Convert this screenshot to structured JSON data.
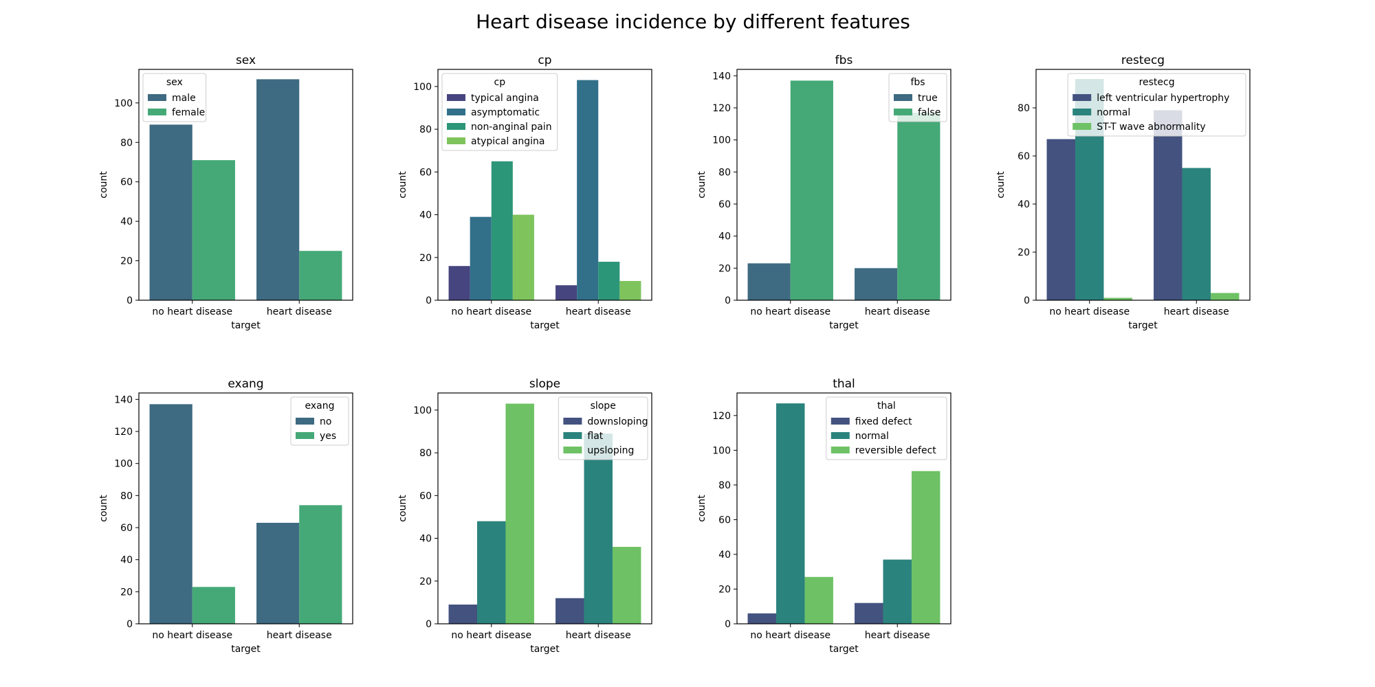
{
  "figure": {
    "title": "Heart disease incidence by different features"
  },
  "chart_data": [
    {
      "type": "bar",
      "title": "sex",
      "xlabel": "target",
      "ylabel": "count",
      "categories": [
        "no heart disease",
        "heart disease"
      ],
      "ylim": [
        0,
        117
      ],
      "yticks": [
        0,
        20,
        40,
        60,
        80,
        100
      ],
      "legend": {
        "title": "sex",
        "placement": "upper left"
      },
      "series": [
        {
          "name": "male",
          "color": "#3e6a82",
          "values": [
            89,
            112
          ]
        },
        {
          "name": "female",
          "color": "#45a977",
          "values": [
            71,
            25
          ]
        }
      ]
    },
    {
      "type": "bar",
      "title": "cp",
      "xlabel": "target",
      "ylabel": "count",
      "categories": [
        "no heart disease",
        "heart disease"
      ],
      "ylim": [
        0,
        108
      ],
      "yticks": [
        0,
        20,
        40,
        60,
        80,
        100
      ],
      "legend": {
        "title": "cp",
        "placement": "upper left"
      },
      "series": [
        {
          "name": "typical angina",
          "color": "#46457f",
          "values": [
            16,
            7
          ]
        },
        {
          "name": "asymptomatic",
          "color": "#32708a",
          "values": [
            39,
            103
          ]
        },
        {
          "name": "non-anginal pain",
          "color": "#2c9679",
          "values": [
            65,
            18
          ]
        },
        {
          "name": "atypical angina",
          "color": "#7fc35d",
          "values": [
            40,
            9
          ]
        }
      ]
    },
    {
      "type": "bar",
      "title": "fbs",
      "xlabel": "target",
      "ylabel": "count",
      "categories": [
        "no heart disease",
        "heart disease"
      ],
      "ylim": [
        0,
        144
      ],
      "yticks": [
        0,
        20,
        40,
        60,
        80,
        100,
        120,
        140
      ],
      "legend": {
        "title": "fbs",
        "placement": "upper right"
      },
      "series": [
        {
          "name": "true",
          "color": "#3e6a82",
          "values": [
            23,
            20
          ]
        },
        {
          "name": "false",
          "color": "#45a977",
          "values": [
            137,
            117
          ]
        }
      ]
    },
    {
      "type": "bar",
      "title": "restecg",
      "xlabel": "target",
      "ylabel": "count",
      "categories": [
        "no heart disease",
        "heart disease"
      ],
      "ylim": [
        0,
        96
      ],
      "yticks": [
        0,
        20,
        40,
        60,
        80
      ],
      "legend": {
        "title": "restecg",
        "placement": "upper right"
      },
      "series": [
        {
          "name": "left ventricular hypertrophy",
          "color": "#43527f",
          "values": [
            67,
            79
          ]
        },
        {
          "name": "normal",
          "color": "#2b837d",
          "values": [
            92,
            55
          ]
        },
        {
          "name": "ST-T wave abnormality",
          "color": "#6ec265",
          "values": [
            1,
            3
          ]
        }
      ]
    },
    {
      "type": "bar",
      "title": "exang",
      "xlabel": "target",
      "ylabel": "count",
      "categories": [
        "no heart disease",
        "heart disease"
      ],
      "ylim": [
        0,
        144
      ],
      "yticks": [
        0,
        20,
        40,
        60,
        80,
        100,
        120,
        140
      ],
      "legend": {
        "title": "exang",
        "placement": "upper right"
      },
      "series": [
        {
          "name": "no",
          "color": "#3e6a82",
          "values": [
            137,
            63
          ]
        },
        {
          "name": "yes",
          "color": "#45a977",
          "values": [
            23,
            74
          ]
        }
      ]
    },
    {
      "type": "bar",
      "title": "slope",
      "xlabel": "target",
      "ylabel": "count",
      "categories": [
        "no heart disease",
        "heart disease"
      ],
      "ylim": [
        0,
        108
      ],
      "yticks": [
        0,
        20,
        40,
        60,
        80,
        100
      ],
      "legend": {
        "title": "slope",
        "placement": "upper right"
      },
      "series": [
        {
          "name": "downsloping",
          "color": "#43527f",
          "values": [
            9,
            12
          ]
        },
        {
          "name": "flat",
          "color": "#2b837d",
          "values": [
            48,
            89
          ]
        },
        {
          "name": "upsloping",
          "color": "#6ec265",
          "values": [
            103,
            36
          ]
        }
      ]
    },
    {
      "type": "bar",
      "title": "thal",
      "xlabel": "target",
      "ylabel": "count",
      "categories": [
        "no heart disease",
        "heart disease"
      ],
      "ylim": [
        0,
        133
      ],
      "yticks": [
        0,
        20,
        40,
        60,
        80,
        100,
        120
      ],
      "legend": {
        "title": "thal",
        "placement": "upper right"
      },
      "series": [
        {
          "name": "fixed defect",
          "color": "#43527f",
          "values": [
            6,
            12
          ]
        },
        {
          "name": "normal",
          "color": "#2b837d",
          "values": [
            127,
            37
          ]
        },
        {
          "name": "reversible defect",
          "color": "#6ec265",
          "values": [
            27,
            88
          ]
        }
      ]
    }
  ]
}
